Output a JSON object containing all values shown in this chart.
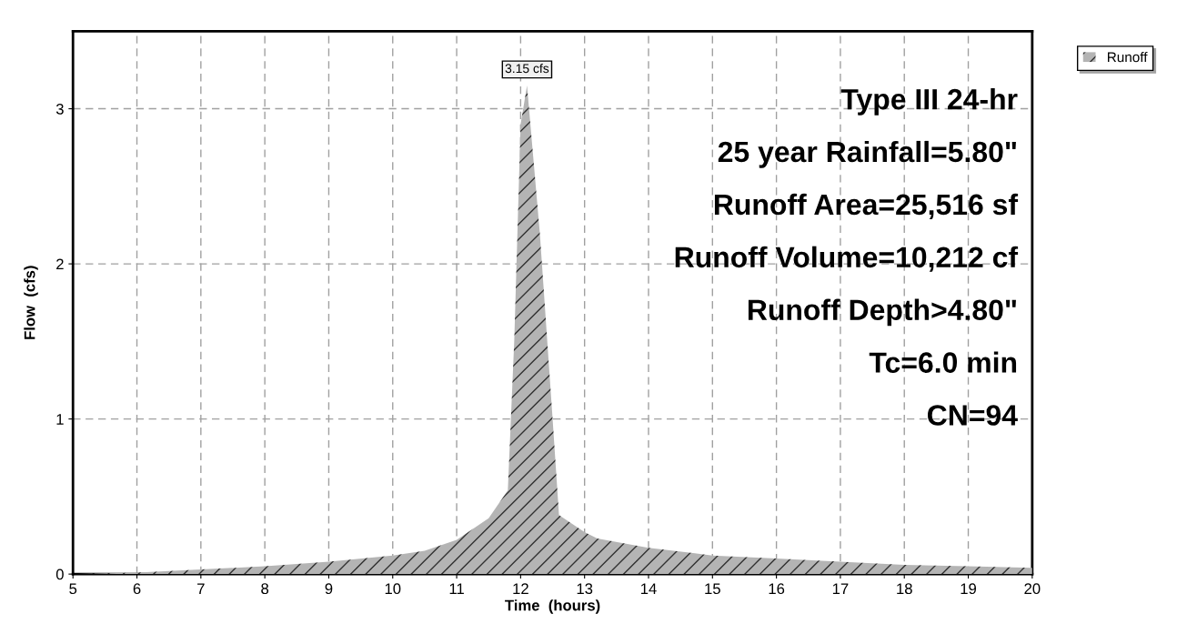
{
  "chart_data": {
    "type": "area",
    "xlabel": "Time  (hours)",
    "ylabel": "Flow  (cfs)",
    "xlim": [
      5,
      20
    ],
    "ylim": [
      0,
      3.5
    ],
    "xticks": [
      5,
      6,
      7,
      8,
      9,
      10,
      11,
      12,
      13,
      14,
      15,
      16,
      17,
      18,
      19,
      20
    ],
    "yticks": [
      0,
      1,
      2,
      3
    ],
    "grid": true,
    "legend": "top right",
    "series": [
      {
        "name": "Runoff",
        "color": "#b4b4b4",
        "x": [
          5,
          6,
          7,
          8,
          9,
          10,
          10.5,
          11,
          11.5,
          11.8,
          11.9,
          12.0,
          12.1,
          12.3,
          12.5,
          12.6,
          13.0,
          13.2,
          14,
          15,
          16,
          17,
          18,
          19,
          20
        ],
        "values": [
          0,
          0.01,
          0.03,
          0.05,
          0.08,
          0.12,
          0.15,
          0.22,
          0.36,
          0.54,
          1.5,
          2.9,
          3.15,
          2.2,
          1.0,
          0.38,
          0.27,
          0.23,
          0.17,
          0.12,
          0.1,
          0.08,
          0.06,
          0.05,
          0.04
        ]
      }
    ],
    "annotations": [
      {
        "text": "3.15 cfs",
        "x": 12.1,
        "y": 3.15
      },
      "Type III 24-hr",
      "25 year Rainfall=5.80\"",
      "Runoff Area=25,516 sf",
      "Runoff Volume=10,212 cf",
      "Runoff Depth>4.80\"",
      "Tc=6.0 min",
      "CN=94"
    ]
  }
}
